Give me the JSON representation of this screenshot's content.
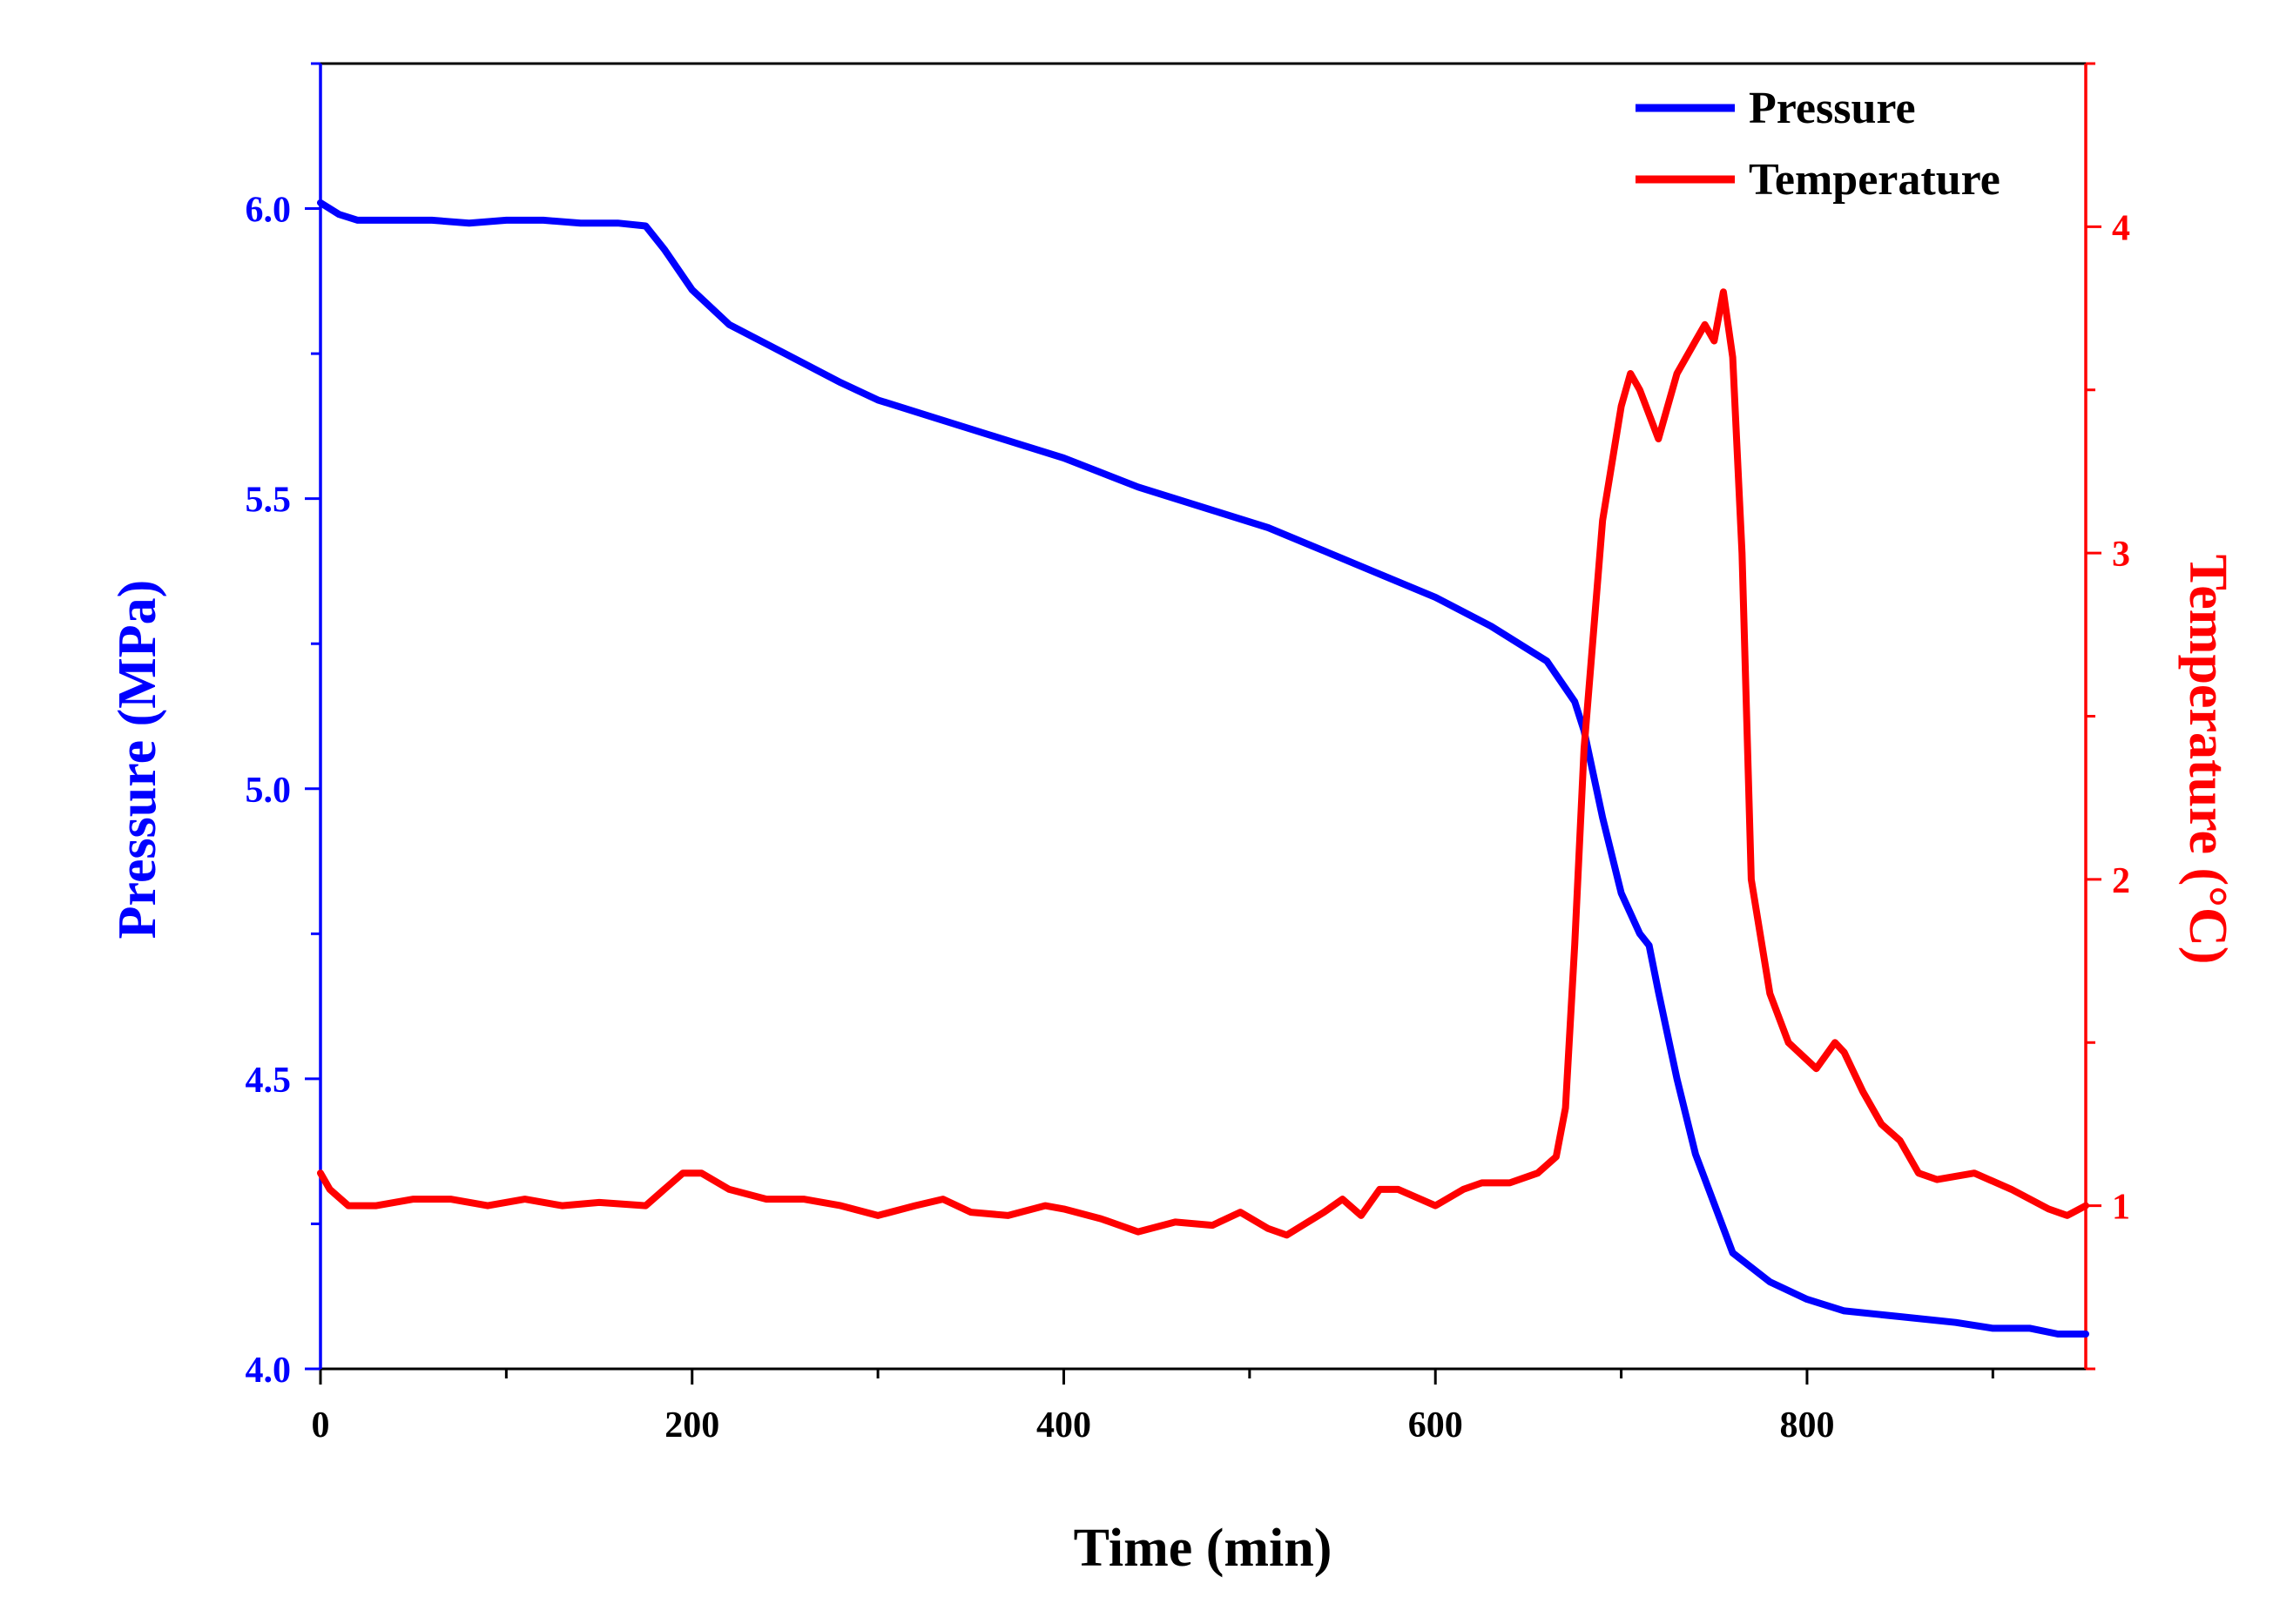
{
  "chart_data": {
    "type": "line",
    "title": "",
    "xlabel": "Time (min)",
    "ylabel_left": "Pressure (MPa)",
    "ylabel_right": "Temperature (°C)",
    "xlim": [
      0,
      950
    ],
    "ylim_left": [
      4.0,
      6.25
    ],
    "ylim_right": [
      0.5,
      4.5
    ],
    "grid": false,
    "legend_position": "top-right",
    "x_ticks": [
      0,
      200,
      400,
      600,
      800
    ],
    "x_tick_labels": [
      "0",
      "200",
      "400",
      "600",
      "800"
    ],
    "y_left_ticks": [
      4.0,
      4.5,
      5.0,
      5.5,
      6.0
    ],
    "y_left_tick_labels": [
      "4.0",
      "4.5",
      "5.0",
      "5.5",
      "6.0"
    ],
    "y_right_ticks": [
      1,
      2,
      3,
      4
    ],
    "y_right_tick_labels": [
      "1",
      "2",
      "3",
      "4"
    ],
    "series": [
      {
        "name": "Pressure",
        "axis": "left",
        "color": "#0000ff",
        "x": [
          0,
          10,
          20,
          40,
          60,
          80,
          100,
          120,
          140,
          160,
          175,
          185,
          200,
          220,
          250,
          280,
          300,
          330,
          360,
          400,
          440,
          480,
          510,
          540,
          570,
          600,
          630,
          660,
          675,
          680,
          690,
          700,
          710,
          715,
          720,
          730,
          740,
          760,
          780,
          800,
          820,
          850,
          880,
          900,
          920,
          935,
          950
        ],
        "values": [
          6.01,
          5.99,
          5.98,
          5.98,
          5.98,
          5.975,
          5.98,
          5.98,
          5.975,
          5.975,
          5.97,
          5.93,
          5.86,
          5.8,
          5.75,
          5.7,
          5.67,
          5.64,
          5.61,
          5.57,
          5.52,
          5.48,
          5.45,
          5.41,
          5.37,
          5.33,
          5.28,
          5.22,
          5.15,
          5.1,
          4.95,
          4.82,
          4.75,
          4.73,
          4.65,
          4.5,
          4.37,
          4.2,
          4.15,
          4.12,
          4.1,
          4.09,
          4.08,
          4.07,
          4.07,
          4.06,
          4.06
        ]
      },
      {
        "name": "Temperature",
        "axis": "right",
        "color": "#ff0000",
        "x": [
          0,
          5,
          15,
          30,
          50,
          70,
          90,
          110,
          130,
          150,
          175,
          185,
          195,
          205,
          220,
          240,
          260,
          280,
          300,
          320,
          335,
          350,
          370,
          390,
          400,
          420,
          440,
          460,
          480,
          495,
          510,
          520,
          540,
          550,
          560,
          570,
          580,
          600,
          615,
          625,
          640,
          655,
          665,
          670,
          675,
          680,
          690,
          700,
          705,
          710,
          720,
          730,
          740,
          745,
          750,
          755,
          760,
          765,
          770,
          780,
          790,
          805,
          815,
          820,
          830,
          840,
          850,
          860,
          870,
          890,
          910,
          930,
          940,
          950
        ],
        "values": [
          1.1,
          1.05,
          1.0,
          1.0,
          1.02,
          1.02,
          1.0,
          1.02,
          1.0,
          1.01,
          1.0,
          1.05,
          1.1,
          1.1,
          1.05,
          1.02,
          1.02,
          1.0,
          0.97,
          1.0,
          1.02,
          0.98,
          0.97,
          1.0,
          0.99,
          0.96,
          0.92,
          0.95,
          0.94,
          0.98,
          0.93,
          0.91,
          0.98,
          1.02,
          0.97,
          1.05,
          1.05,
          1.0,
          1.05,
          1.07,
          1.07,
          1.1,
          1.15,
          1.3,
          1.8,
          2.4,
          3.1,
          3.45,
          3.55,
          3.5,
          3.35,
          3.55,
          3.65,
          3.7,
          3.65,
          3.8,
          3.6,
          3.0,
          2.0,
          1.65,
          1.5,
          1.42,
          1.5,
          1.47,
          1.35,
          1.25,
          1.2,
          1.1,
          1.08,
          1.1,
          1.05,
          0.99,
          0.97,
          1.0
        ]
      }
    ]
  }
}
